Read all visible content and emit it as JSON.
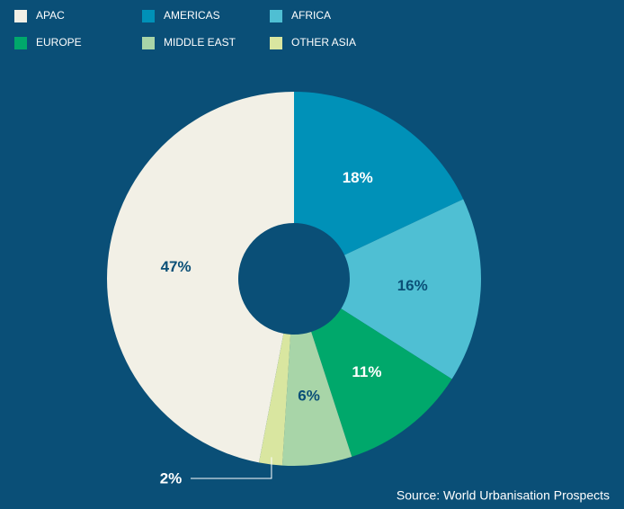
{
  "chart_data": {
    "type": "pie",
    "categories": [
      "APAC",
      "AMERICAS",
      "AFRICA",
      "EUROPE",
      "MIDDLE EAST",
      "OTHER ASIA"
    ],
    "values": [
      47,
      18,
      16,
      11,
      6,
      2
    ],
    "value_labels": [
      "47%",
      "18%",
      "16%",
      "11%",
      "6%",
      "2%"
    ],
    "colors": [
      "#f2f0e6",
      "#0091b8",
      "#4fbfd3",
      "#00a86b",
      "#a8d5a8",
      "#d9e6a0"
    ],
    "donut": true,
    "source": "Source: World Urbanisation Prospects"
  }
}
